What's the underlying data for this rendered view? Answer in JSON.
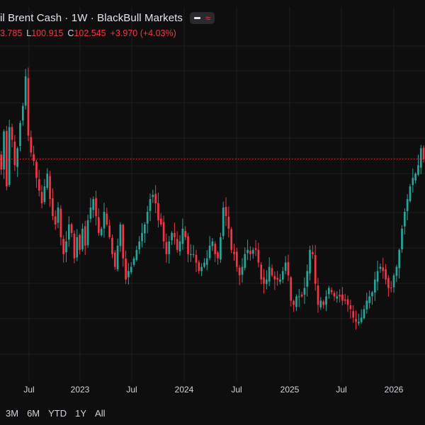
{
  "header": {
    "title": "il Brent Cash · 1W · BlackBull Markets",
    "ohlc": {
      "open_value": "3.785",
      "low_label": "L",
      "low_value": "100.915",
      "close_label": "C",
      "close_value": "102.545",
      "change": "+3.970 (+4.03%)"
    }
  },
  "colors": {
    "background": "#0e0e0e",
    "grid": "#1f1f22",
    "up": "#26a69a",
    "down": "#f23645",
    "price_line": "#f23645",
    "text": "#d1d4dc"
  },
  "x_axis": [
    "Jul",
    "2023",
    "Jul",
    "2024",
    "Jul",
    "2025",
    "Jul",
    "2026"
  ],
  "range_buttons": [
    "3M",
    "6M",
    "YTD",
    "1Y",
    "All"
  ],
  "chart_data": {
    "type": "candlestick",
    "title": "il Brent Cash · 1W · BlackBull Markets",
    "interval": "1W",
    "x_start": "2022-01-03",
    "x_end": "2026-04-06",
    "y_range": [
      50,
      130
    ],
    "last_price_line": 102.5,
    "grid": true,
    "weekly_close": [
      104,
      100,
      109,
      96,
      110,
      107,
      101,
      105,
      111,
      115,
      122,
      108,
      104,
      102,
      98,
      95,
      92,
      96,
      99,
      93,
      89,
      87,
      91,
      84,
      80,
      83,
      87,
      85,
      79,
      84,
      81,
      86,
      82,
      88,
      91,
      93,
      89,
      85,
      86,
      90,
      87,
      84,
      80,
      77,
      82,
      87,
      79,
      74,
      76,
      77,
      79,
      81,
      83,
      85,
      87,
      90,
      93,
      94,
      92,
      88,
      87,
      83,
      80,
      83,
      85,
      84,
      81,
      83,
      86,
      84,
      80,
      80,
      80,
      78,
      76,
      77,
      78,
      79,
      82,
      83,
      80,
      79,
      84,
      91,
      89,
      86,
      81,
      80,
      77,
      75,
      77,
      80,
      81,
      80,
      81,
      81,
      78,
      74,
      73,
      74,
      77,
      75,
      74,
      74,
      74,
      76,
      78,
      75,
      69,
      68,
      70,
      70,
      70,
      72,
      76,
      81,
      80,
      73,
      68,
      69,
      68,
      70,
      72,
      71,
      70,
      70,
      70,
      69,
      69,
      68,
      67,
      65,
      64,
      64,
      65,
      67,
      69,
      70,
      71,
      74,
      76,
      77,
      76,
      74,
      72,
      72,
      75,
      77,
      81,
      86,
      90,
      93,
      96,
      98,
      99,
      101,
      105,
      102.5
    ]
  },
  "footer": {}
}
